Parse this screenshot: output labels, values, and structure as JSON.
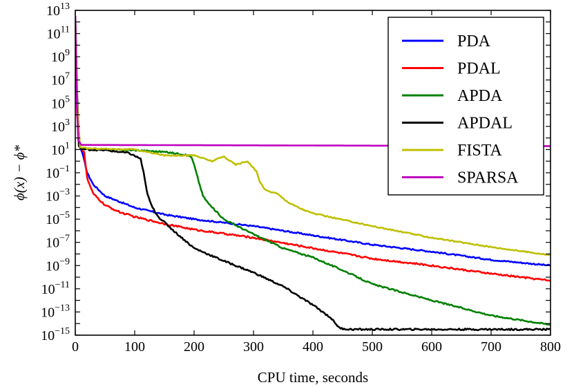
{
  "chart_data": {
    "type": "line",
    "title": "",
    "xlabel": "CPU time, seconds",
    "ylabel": "ϕ(x) − ϕ*",
    "xscale": "linear",
    "yscale": "log",
    "xlim": [
      0,
      800
    ],
    "ylim_exponent": [
      -15,
      13
    ],
    "xticks": [
      0,
      100,
      200,
      300,
      400,
      500,
      600,
      700,
      800
    ],
    "xtick_labels": [
      "0",
      "100",
      "200",
      "300",
      "400",
      "500",
      "600",
      "700",
      "800"
    ],
    "yticks_exponent": [
      -15,
      -13,
      -11,
      -9,
      -7,
      -5,
      -3,
      -1,
      1,
      3,
      5,
      7,
      9,
      11,
      13
    ],
    "ytick_base": "10",
    "ytick_exponent_labels": [
      "−15",
      "−13",
      "−11",
      "−9",
      "−7",
      "−5",
      "−3",
      "−1",
      "1",
      "3",
      "5",
      "7",
      "9",
      "11",
      "13"
    ],
    "legend_position": "top-right",
    "series": [
      {
        "name": "PDA",
        "color": "#0000ff",
        "noise": 0.06,
        "x": [
          0,
          3,
          8,
          12,
          20,
          30,
          50,
          75,
          100,
          150,
          200,
          300,
          400,
          500,
          600,
          700,
          800
        ],
        "y_log10": [
          12.5,
          5,
          1.2,
          0.7,
          -1,
          -2,
          -3,
          -3.5,
          -4,
          -4.6,
          -5,
          -5.6,
          -6.4,
          -7.2,
          -7.8,
          -8.5,
          -9
        ]
      },
      {
        "name": "PDAL",
        "color": "#ff0000",
        "noise": 0.07,
        "x": [
          0,
          3,
          8,
          15,
          20,
          30,
          50,
          75,
          100,
          150,
          200,
          300,
          400,
          500,
          600,
          700,
          800
        ],
        "y_log10": [
          12.5,
          4,
          1.2,
          0.8,
          -1.5,
          -2.8,
          -3.8,
          -4.4,
          -4.8,
          -5.4,
          -5.9,
          -6.6,
          -7.5,
          -8.4,
          -9,
          -9.7,
          -10.3
        ]
      },
      {
        "name": "APDA",
        "color": "#008000",
        "noise": 0.06,
        "x": [
          0,
          3,
          6,
          10,
          15,
          50,
          100,
          150,
          180,
          195,
          200,
          208,
          215,
          225,
          250,
          300,
          350,
          400,
          450,
          500,
          600,
          700,
          800
        ],
        "y_log10": [
          12.5,
          5,
          1.3,
          1.1,
          1.05,
          1,
          0.95,
          0.8,
          0.6,
          0.4,
          -0.3,
          -1.8,
          -3,
          -3.7,
          -5,
          -6.3,
          -7.5,
          -8.3,
          -9.4,
          -10.6,
          -12,
          -13.3,
          -14.1
        ]
      },
      {
        "name": "APDAL",
        "color": "#000000",
        "noise": 0.07,
        "x": [
          0,
          3,
          6,
          10,
          20,
          50,
          90,
          110,
          115,
          120,
          125,
          130,
          140,
          170,
          200,
          250,
          300,
          350,
          400,
          430,
          445,
          460,
          500,
          600,
          700,
          800
        ],
        "y_log10": [
          12.5,
          6,
          1.3,
          1.05,
          1,
          0.95,
          0.7,
          0.2,
          -1,
          -2.5,
          -3.4,
          -4,
          -4.8,
          -6.2,
          -7.5,
          -8.6,
          -9.6,
          -10.8,
          -12.4,
          -13.5,
          -14.4,
          -14.5,
          -14.5,
          -14.5,
          -14.5,
          -14.5
        ]
      },
      {
        "name": "FISTA",
        "color": "#bfbf00",
        "noise": 0.05,
        "x": [
          0,
          3,
          8,
          20,
          100,
          150,
          200,
          230,
          250,
          270,
          290,
          305,
          310,
          320,
          340,
          350,
          360,
          380,
          400,
          500,
          600,
          700,
          800
        ],
        "y_log10": [
          12.5,
          5,
          1.2,
          1.1,
          1,
          0.5,
          0.5,
          0,
          0.4,
          -0.3,
          0,
          -0.9,
          -1.7,
          -2.5,
          -2.8,
          -3.2,
          -3.6,
          -4.1,
          -4.5,
          -5.6,
          -6.6,
          -7.4,
          -8.1
        ]
      },
      {
        "name": "SPARSA",
        "color": "#bf00bf",
        "noise": 0,
        "x": [
          0,
          2,
          5,
          10,
          800
        ],
        "y_log10": [
          12.5,
          6,
          1.8,
          1.4,
          1.3
        ]
      }
    ]
  }
}
